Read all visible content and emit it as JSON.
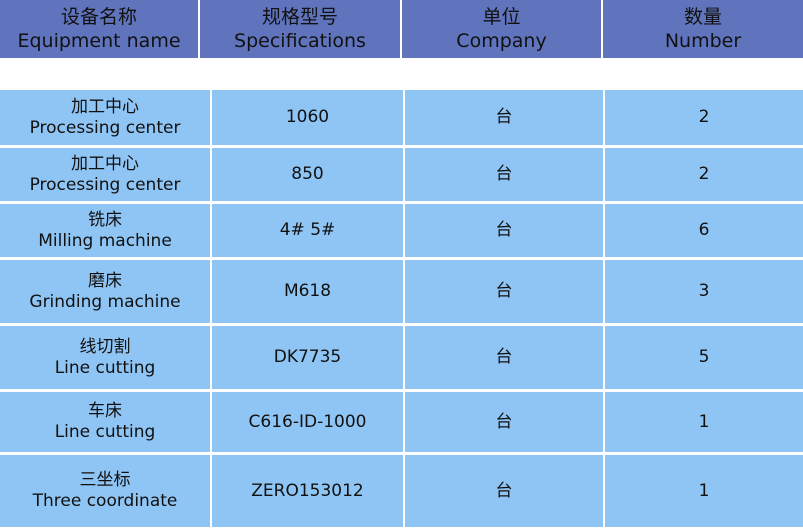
{
  "header": [
    {
      "zh": "设备名称",
      "en": "Equipment name"
    },
    {
      "zh": "规格型号",
      "en": "Specifications"
    },
    {
      "zh": "单位",
      "en": "Company"
    },
    {
      "zh": "数量",
      "en": "Number"
    }
  ],
  "rows": [
    {
      "zh": "加工中心",
      "en": "Processing center",
      "spec": "1060",
      "unit": "台",
      "qty": "2"
    },
    {
      "zh": "加工中心",
      "en": "Processing center",
      "spec": "850",
      "unit": "台",
      "qty": "2"
    },
    {
      "zh": "铣床",
      "en": "Milling machine",
      "spec": "4# 5#",
      "unit": "台",
      "qty": "6"
    },
    {
      "zh": "磨床",
      "en": "Grinding machine",
      "spec": "M618",
      "unit": "台",
      "qty": "3"
    },
    {
      "zh": "线切割",
      "en": "Line cutting",
      "spec": "DK7735",
      "unit": "台",
      "qty": "5"
    },
    {
      "zh": "车床",
      "en": "Line cutting",
      "spec": "C616-ID-1000",
      "unit": "台",
      "qty": "1"
    },
    {
      "zh": "三坐标",
      "en": "Three coordinate",
      "spec": "ZERO153012",
      "unit": "台",
      "qty": "1"
    }
  ]
}
